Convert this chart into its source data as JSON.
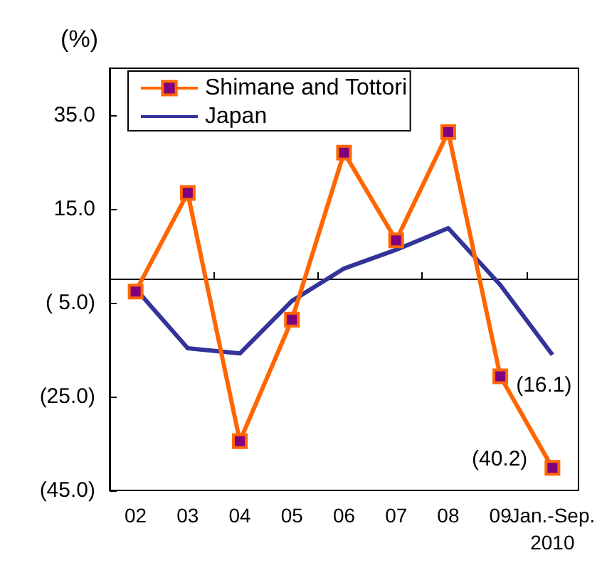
{
  "chart_data": {
    "type": "line",
    "ylabel": "(%)",
    "categories": [
      "02",
      "03",
      "04",
      "05",
      "06",
      "07",
      "08",
      "09",
      "Jan.-Sep.\n2010"
    ],
    "series": [
      {
        "name": "Shimane and Tottori",
        "color": "#ff6600",
        "marker": "square",
        "values": [
          -2.6,
          18.4,
          -34.5,
          -8.6,
          27,
          8.3,
          31.4,
          -20.7,
          -40.2
        ],
        "value_labels": [
          null,
          null,
          null,
          null,
          null,
          null,
          null,
          null,
          "(40.2)"
        ]
      },
      {
        "name": "Japan",
        "color": "#333399",
        "marker": "none",
        "values": [
          -2,
          -14.7,
          -15.8,
          -4.6,
          2.3,
          6.3,
          10.9,
          -1.2,
          -16.1
        ],
        "value_labels": [
          null,
          null,
          null,
          null,
          null,
          null,
          null,
          null,
          "(16.1)"
        ]
      }
    ],
    "ylim": [
      -45,
      45
    ],
    "yticks": [
      {
        "value": -45,
        "label": "(45.0)"
      },
      {
        "value": -25,
        "label": "(25.0)"
      },
      {
        "value": -5,
        "label": "( 5.0)"
      },
      {
        "value": 15,
        "label": "15.0"
      },
      {
        "value": 35,
        "label": "35.0"
      }
    ],
    "grid": false,
    "legend": "top left"
  }
}
